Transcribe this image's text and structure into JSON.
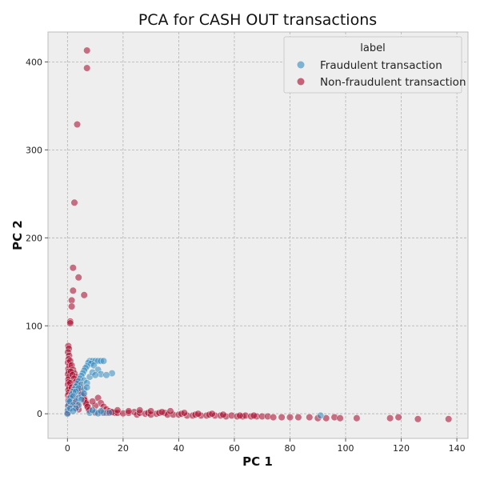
{
  "chart_data": {
    "type": "scatter",
    "title": "PCA for CASH OUT transactions",
    "xlabel": "PC 1",
    "ylabel": "PC 2",
    "xlim": [
      -7,
      144
    ],
    "ylim": [
      -28,
      434
    ],
    "xticks": [
      0,
      20,
      40,
      60,
      80,
      100,
      120,
      140
    ],
    "yticks": [
      0,
      100,
      200,
      300,
      400
    ],
    "grid": true,
    "legend": {
      "title": "label",
      "position": "top-right"
    },
    "colors": {
      "fraud": "#348ABD",
      "nonfraud": "#A60628",
      "background": "#EEEEEE",
      "grid": "#B2B2B2"
    },
    "series": [
      {
        "name": "Non-fraudulent transaction",
        "color": "#A60628",
        "points": [
          [
            7,
            413
          ],
          [
            7,
            393
          ],
          [
            3.5,
            329
          ],
          [
            2.5,
            240
          ],
          [
            2,
            166
          ],
          [
            4,
            155
          ],
          [
            2,
            140
          ],
          [
            6,
            135
          ],
          [
            1.5,
            129
          ],
          [
            1.5,
            122
          ],
          [
            1,
            105
          ],
          [
            1,
            103
          ],
          [
            0.3,
            77
          ],
          [
            0.5,
            74
          ],
          [
            0.2,
            70
          ],
          [
            0.6,
            66
          ],
          [
            0.4,
            62
          ],
          [
            0.2,
            58
          ],
          [
            0.8,
            55
          ],
          [
            0.3,
            51
          ],
          [
            0.5,
            48
          ],
          [
            0.2,
            45
          ],
          [
            0.6,
            42
          ],
          [
            0.3,
            39
          ],
          [
            0.4,
            36
          ],
          [
            0.2,
            33
          ],
          [
            0.7,
            30
          ],
          [
            0.3,
            27
          ],
          [
            0.5,
            24
          ],
          [
            0.2,
            21
          ],
          [
            0.6,
            18
          ],
          [
            0.3,
            15
          ],
          [
            0.5,
            12
          ],
          [
            0.2,
            9
          ],
          [
            0.7,
            6
          ],
          [
            0.3,
            3
          ],
          [
            0.1,
            1
          ],
          [
            1,
            60
          ],
          [
            1.5,
            55
          ],
          [
            2,
            50
          ],
          [
            2.5,
            46
          ],
          [
            3,
            42
          ],
          [
            3.5,
            38
          ],
          [
            4,
            34
          ],
          [
            4.5,
            30
          ],
          [
            5,
            26
          ],
          [
            5.5,
            22
          ],
          [
            6,
            18
          ],
          [
            6.5,
            14
          ],
          [
            7,
            10
          ],
          [
            7.5,
            6
          ],
          [
            1.2,
            48
          ],
          [
            1.8,
            44
          ],
          [
            2.4,
            40
          ],
          [
            3,
            36
          ],
          [
            3.6,
            32
          ],
          [
            4.2,
            28
          ],
          [
            4.8,
            24
          ],
          [
            5.4,
            20
          ],
          [
            6,
            16
          ],
          [
            6.6,
            12
          ],
          [
            7.2,
            8
          ],
          [
            7.8,
            4
          ],
          [
            1,
            35
          ],
          [
            1.5,
            30
          ],
          [
            2,
            25
          ],
          [
            2.5,
            20
          ],
          [
            3,
            15
          ],
          [
            3.5,
            10
          ],
          [
            4,
            5
          ],
          [
            1.2,
            20
          ],
          [
            2,
            12
          ],
          [
            3,
            7
          ],
          [
            11,
            18
          ],
          [
            12,
            12
          ],
          [
            13,
            8
          ],
          [
            14,
            5
          ],
          [
            15,
            3
          ],
          [
            16,
            2
          ],
          [
            17,
            1
          ],
          [
            10,
            9
          ],
          [
            9,
            14
          ],
          [
            10,
            1
          ],
          [
            12,
            1.5
          ],
          [
            14,
            1
          ],
          [
            16,
            1.8
          ],
          [
            18,
            1
          ],
          [
            20,
            0.5
          ],
          [
            22,
            1
          ],
          [
            24,
            2
          ],
          [
            25,
            -1
          ],
          [
            26,
            1
          ],
          [
            28,
            0
          ],
          [
            29,
            1
          ],
          [
            30,
            -1
          ],
          [
            32,
            0
          ],
          [
            33,
            1
          ],
          [
            35,
            1
          ],
          [
            36,
            -1
          ],
          [
            38,
            -1
          ],
          [
            40,
            -1
          ],
          [
            41,
            0
          ],
          [
            43,
            -2
          ],
          [
            45,
            -2
          ],
          [
            46,
            -1
          ],
          [
            48,
            -2
          ],
          [
            50,
            -2
          ],
          [
            51,
            -1
          ],
          [
            53,
            -2
          ],
          [
            55,
            -2
          ],
          [
            57,
            -3
          ],
          [
            59,
            -2
          ],
          [
            61,
            -3
          ],
          [
            63,
            -3
          ],
          [
            64,
            -2
          ],
          [
            66,
            -3
          ],
          [
            68,
            -3
          ],
          [
            70,
            -3
          ],
          [
            72,
            -3
          ],
          [
            74,
            -4
          ],
          [
            77,
            -4
          ],
          [
            80,
            -4
          ],
          [
            83,
            -4
          ],
          [
            87,
            -4
          ],
          [
            90,
            -5
          ],
          [
            93,
            -5
          ],
          [
            96,
            -4
          ],
          [
            98,
            -5
          ],
          [
            104,
            -5
          ],
          [
            116,
            -5
          ],
          [
            119,
            -4
          ],
          [
            126,
            -6
          ],
          [
            137,
            -6
          ],
          [
            18,
            4
          ],
          [
            22,
            3
          ],
          [
            26,
            4
          ],
          [
            30,
            3
          ],
          [
            34,
            2
          ],
          [
            37,
            3
          ],
          [
            42,
            1
          ],
          [
            47,
            0
          ],
          [
            52,
            0
          ],
          [
            56,
            -1
          ],
          [
            62,
            -2
          ],
          [
            67,
            -2
          ]
        ]
      },
      {
        "name": "Fraudulent transaction",
        "color": "#348ABD",
        "points": [
          [
            8,
            60
          ],
          [
            9,
            60
          ],
          [
            10,
            60
          ],
          [
            11,
            60
          ],
          [
            12,
            60
          ],
          [
            13,
            60
          ],
          [
            7.5,
            58
          ],
          [
            8.5,
            57
          ],
          [
            9.5,
            55
          ],
          [
            7,
            54
          ],
          [
            6.5,
            52
          ],
          [
            6,
            49
          ],
          [
            5.5,
            46
          ],
          [
            5,
            43
          ],
          [
            4.5,
            40
          ],
          [
            4,
            37
          ],
          [
            3.5,
            34
          ],
          [
            3,
            31
          ],
          [
            2.5,
            28
          ],
          [
            2,
            25
          ],
          [
            1.5,
            22
          ],
          [
            1,
            18
          ],
          [
            0.5,
            14
          ],
          [
            0.3,
            9
          ],
          [
            0.1,
            4
          ],
          [
            0,
            0
          ],
          [
            6,
            38
          ],
          [
            5,
            33
          ],
          [
            4,
            29
          ],
          [
            3,
            25
          ],
          [
            2,
            20
          ],
          [
            1,
            14
          ],
          [
            7,
            35
          ],
          [
            6,
            28
          ],
          [
            5,
            22
          ],
          [
            4,
            18
          ],
          [
            3,
            14
          ],
          [
            2,
            10
          ],
          [
            1,
            6
          ],
          [
            8,
            42
          ],
          [
            7,
            30
          ],
          [
            6,
            23
          ],
          [
            5,
            16
          ],
          [
            4,
            10
          ],
          [
            3,
            6
          ],
          [
            2,
            3
          ],
          [
            11,
            50
          ],
          [
            12,
            45
          ],
          [
            9,
            47
          ],
          [
            10,
            44
          ],
          [
            16,
            46
          ],
          [
            14,
            44
          ],
          [
            8,
            1
          ],
          [
            10,
            2
          ],
          [
            11,
            0.5
          ],
          [
            13,
            1
          ],
          [
            15,
            1
          ],
          [
            9,
            4
          ],
          [
            12,
            3
          ],
          [
            91,
            -2
          ]
        ]
      }
    ]
  }
}
